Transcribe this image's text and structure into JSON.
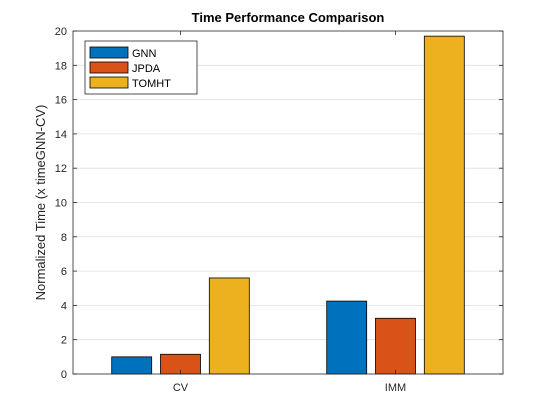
{
  "chart_data": {
    "type": "bar",
    "title": "Time Performance Comparison",
    "xlabel": "",
    "ylabel": "Normalized Time (x timeGNN-CV)",
    "categories": [
      "CV",
      "IMM"
    ],
    "series": [
      {
        "name": "GNN",
        "color": "#0072BD",
        "values": [
          1.0,
          4.25
        ]
      },
      {
        "name": "JPDA",
        "color": "#D95319",
        "values": [
          1.15,
          3.25
        ]
      },
      {
        "name": "TOMHT",
        "color": "#EDB120",
        "values": [
          5.6,
          19.7
        ]
      }
    ],
    "ylim": [
      0,
      20
    ],
    "yticks": [
      0,
      2,
      4,
      6,
      8,
      10,
      12,
      14,
      16,
      18,
      20
    ],
    "grid": "horizontal",
    "legend_position": "top-left"
  }
}
